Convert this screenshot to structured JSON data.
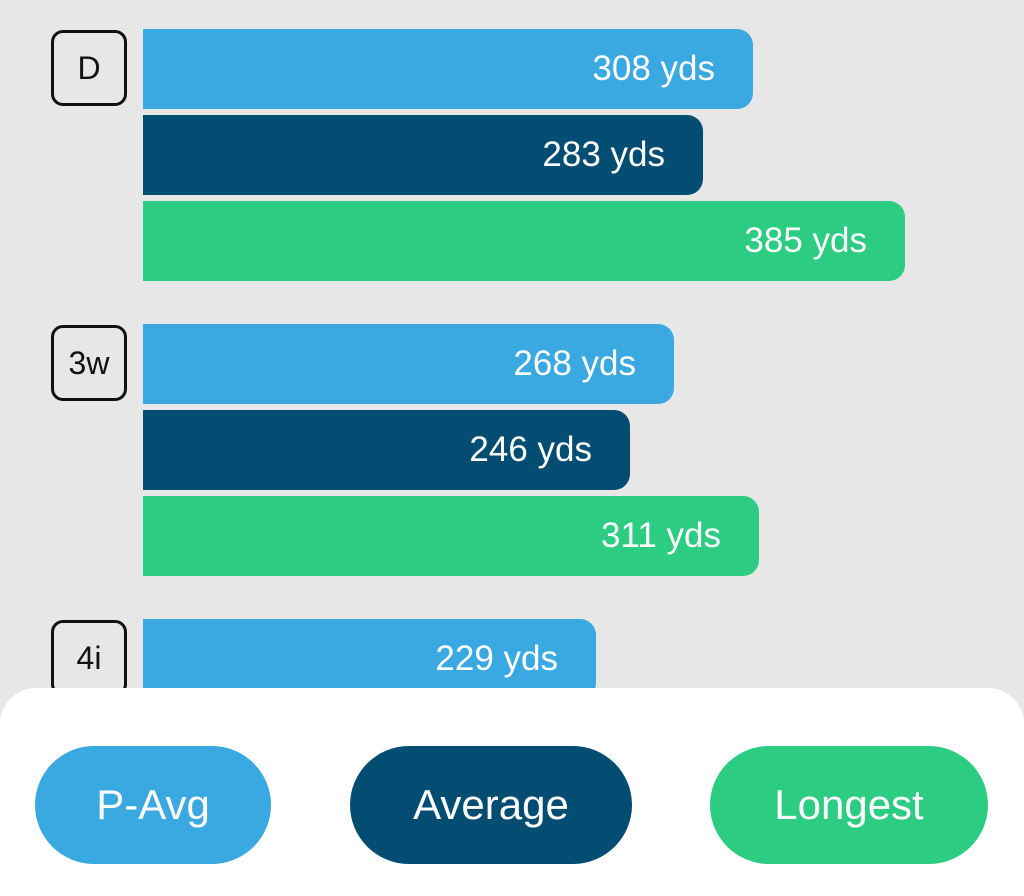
{
  "chart_data": {
    "type": "bar",
    "orientation": "horizontal",
    "categories": [
      "D",
      "3w",
      "4i"
    ],
    "series": [
      {
        "name": "P-Avg",
        "values": [
          308,
          268,
          229
        ],
        "color": "#3aa8e1"
      },
      {
        "name": "Average",
        "values": [
          283,
          246,
          null
        ],
        "color": "#034d73"
      },
      {
        "name": "Longest",
        "values": [
          385,
          311,
          null
        ],
        "color": "#2ccc83"
      }
    ],
    "unit": "yds",
    "value_labels": [
      [
        "308 yds",
        "268 yds",
        "229 yds"
      ],
      [
        "283 yds",
        "246 yds",
        ""
      ],
      [
        "385 yds",
        "311 yds",
        ""
      ]
    ],
    "legend_placement": "bottom"
  },
  "legend": {
    "items": [
      {
        "label": "P-Avg",
        "color": "#3aa8e1"
      },
      {
        "label": "Average",
        "color": "#034d73"
      },
      {
        "label": "Longest",
        "color": "#2ccc83"
      }
    ]
  },
  "colors": {
    "background": "#e7e7e8",
    "panel": "#ffffff",
    "badge_border": "#111111"
  }
}
